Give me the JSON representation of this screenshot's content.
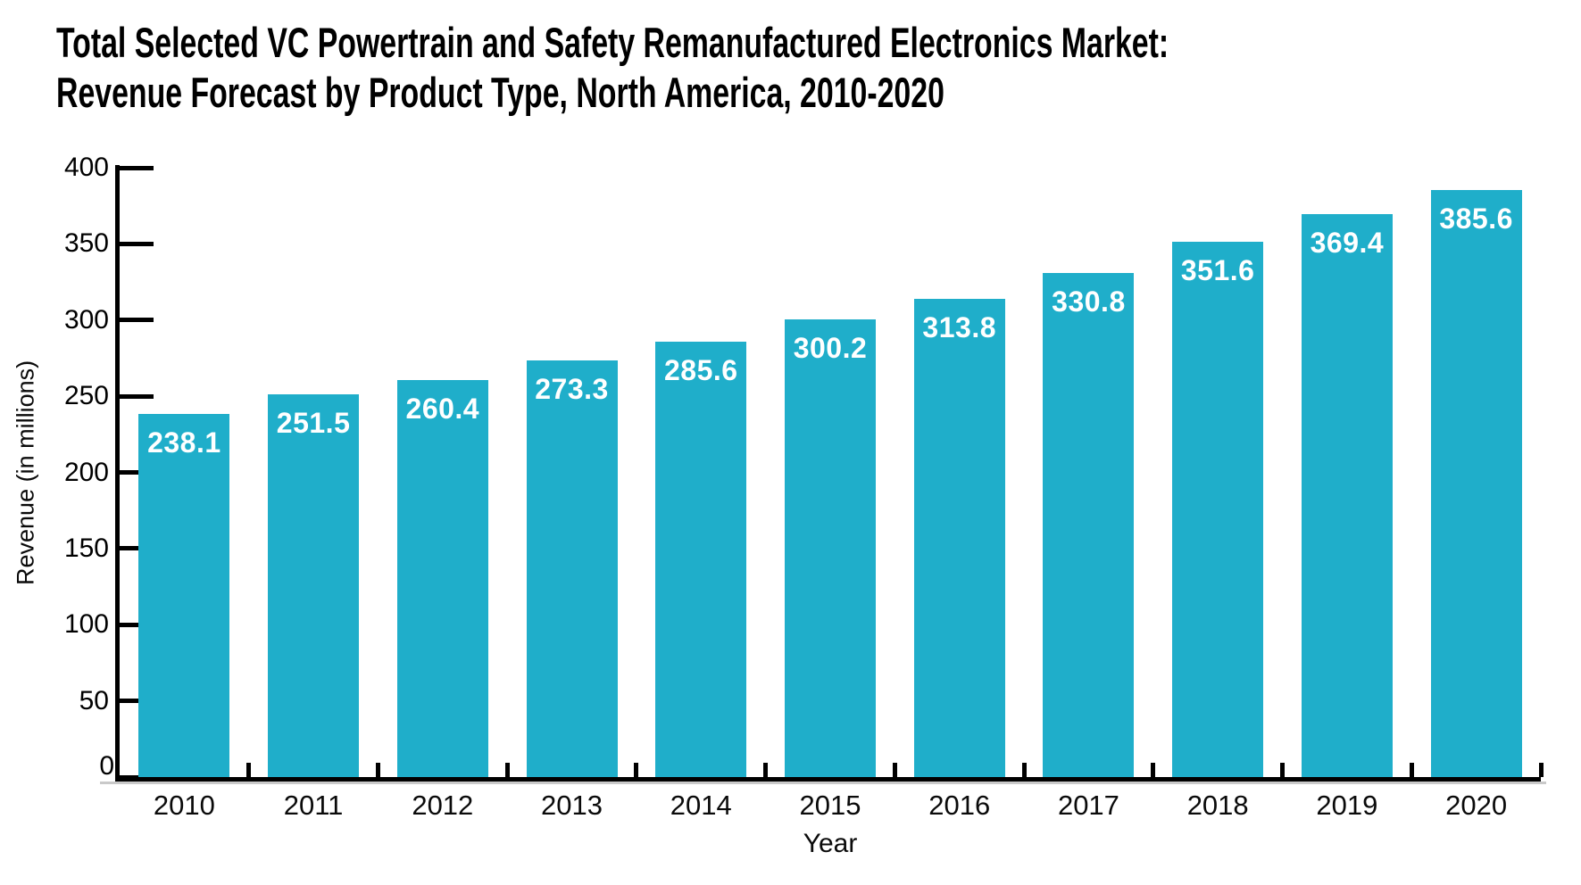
{
  "chart_data": {
    "type": "bar",
    "title": "Total Selected VC Powertrain and Safety Remanufactured Electronics Market: Revenue Forecast by Product Type, North America, 2010-2020",
    "title_line1": "Total Selected VC Powertrain and Safety Remanufactured Electronics Market:",
    "title_line2": "Revenue Forecast by Product Type, North America, 2010-2020",
    "categories": [
      "2010",
      "2011",
      "2012",
      "2013",
      "2014",
      "2015",
      "2016",
      "2017",
      "2018",
      "2019",
      "2020"
    ],
    "values": [
      238.1,
      251.5,
      260.4,
      273.3,
      285.6,
      300.2,
      313.8,
      330.8,
      351.6,
      369.4,
      385.6
    ],
    "value_labels": [
      "238.1",
      "251.5",
      "260.4",
      "273.3",
      "285.6",
      "300.2",
      "313.8",
      "330.8",
      "351.6",
      "369.4",
      "385.6"
    ],
    "xlabel": "Year",
    "ylabel": "Revenue (in millions)",
    "ylim": [
      0,
      400
    ],
    "yticks": [
      0,
      50,
      100,
      150,
      200,
      250,
      300,
      350,
      400
    ],
    "grid": false,
    "legend": false,
    "bar_color": "#1FAECA",
    "value_label_color": "#FFFFFF",
    "axis_color": "#000000",
    "text_color": "#000000"
  }
}
